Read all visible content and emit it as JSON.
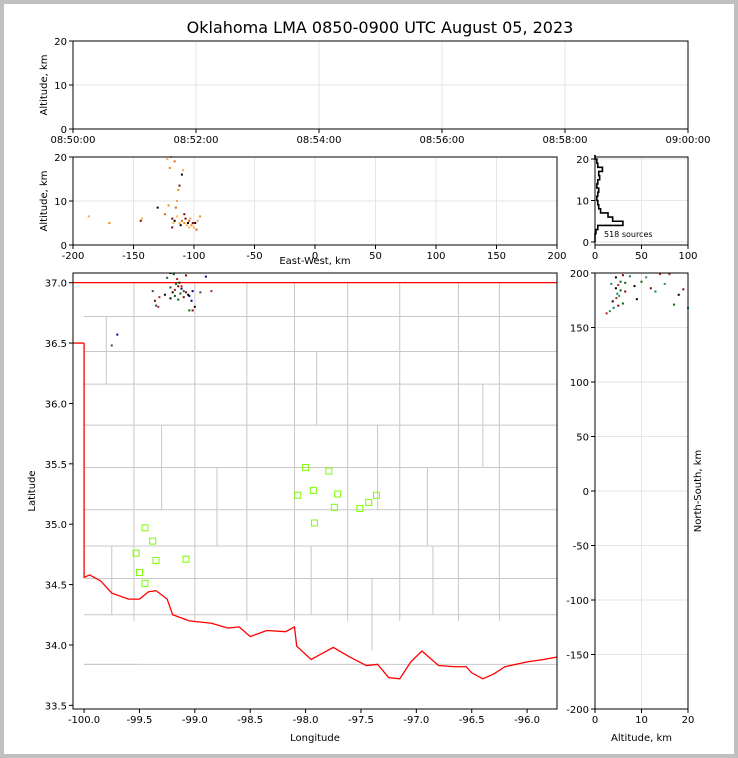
{
  "title": "Oklahoma LMA 0850-0900 UTC August 05, 2023",
  "chart_data": [
    {
      "panel": "time-height",
      "type": "scatter",
      "ylabel": "Altitude, km",
      "x_ticks": [
        "08:50:00",
        "08:52:00",
        "08:54:00",
        "08:56:00",
        "08:58:00",
        "09:00:00"
      ],
      "xlim_minutes": [
        0,
        10
      ],
      "ylim": [
        0,
        20
      ],
      "y_ticks": [
        0,
        10,
        20
      ],
      "grid": true,
      "points": []
    },
    {
      "panel": "east-west-altitude",
      "type": "scatter",
      "xlabel": "East-West, km",
      "ylabel": "Altitude, km",
      "xlim": [
        -200,
        200
      ],
      "ylim": [
        0,
        20
      ],
      "x_ticks": [
        -200,
        -150,
        -100,
        -50,
        0,
        50,
        100,
        150,
        200
      ],
      "y_ticks": [
        0,
        10,
        20
      ],
      "grid": true,
      "points": [
        [
          -187,
          6.5
        ],
        [
          -170,
          5
        ],
        [
          -144,
          5.5
        ],
        [
          -143,
          6
        ],
        [
          -130,
          8.5
        ],
        [
          -124,
          7
        ],
        [
          -122,
          19.5
        ],
        [
          -120,
          17.5
        ],
        [
          -118,
          6
        ],
        [
          -117,
          5
        ],
        [
          -116,
          5.5
        ],
        [
          -115,
          8.5
        ],
        [
          -114,
          10
        ],
        [
          -113,
          12.5
        ],
        [
          -112,
          13.5
        ],
        [
          -112,
          5
        ],
        [
          -111,
          4.5
        ],
        [
          -110,
          5.5
        ],
        [
          -109,
          17
        ],
        [
          -108,
          5
        ],
        [
          -107,
          6
        ],
        [
          -106,
          4.5
        ],
        [
          -105,
          5
        ],
        [
          -104,
          5.5
        ],
        [
          -103,
          6
        ],
        [
          -102,
          4.5
        ],
        [
          -101,
          5
        ],
        [
          -100,
          4
        ],
        [
          -99,
          5
        ],
        [
          -98,
          3.5
        ],
        [
          -97,
          5.5
        ],
        [
          -95,
          6.5
        ],
        [
          -118,
          4
        ],
        [
          -114,
          6.5
        ],
        [
          -110,
          16
        ],
        [
          -116,
          19
        ],
        [
          -119,
          20
        ],
        [
          -121,
          9
        ],
        [
          -108,
          7
        ],
        [
          -104,
          4
        ]
      ]
    },
    {
      "panel": "altitude-histogram",
      "type": "line",
      "xlim": [
        0,
        100
      ],
      "ylim": [
        0,
        20
      ],
      "x_ticks": [
        0,
        50,
        100
      ],
      "y_ticks": [
        0,
        10,
        20
      ],
      "annotation": "518 sources",
      "bins": [
        [
          0.5,
          0
        ],
        [
          1.5,
          0
        ],
        [
          2.5,
          1
        ],
        [
          3.5,
          3
        ],
        [
          4.5,
          30
        ],
        [
          5.5,
          19
        ],
        [
          6.5,
          14
        ],
        [
          7.5,
          6
        ],
        [
          8.5,
          4
        ],
        [
          9.5,
          3
        ],
        [
          10.5,
          2
        ],
        [
          11.5,
          3
        ],
        [
          12.5,
          4
        ],
        [
          13.5,
          2
        ],
        [
          14.5,
          3
        ],
        [
          15.5,
          5
        ],
        [
          16.5,
          4
        ],
        [
          17.5,
          8
        ],
        [
          18.5,
          3
        ],
        [
          19.5,
          2
        ],
        [
          20.5,
          0
        ]
      ]
    },
    {
      "panel": "plan-view",
      "type": "map",
      "xlabel": "Longitude",
      "ylabel": "Latitude",
      "right_label": "North-South, km",
      "xlim": [
        -100.1,
        -95.73
      ],
      "ylim": [
        33.47,
        37.08
      ],
      "x_ticks": [
        -100.0,
        -99.5,
        -99.0,
        -98.5,
        -98.0,
        -97.5,
        -97.0,
        -96.5,
        -96.0
      ],
      "y_ticks": [
        33.5,
        34.0,
        34.5,
        35.0,
        35.5,
        36.0,
        36.5,
        37.0
      ],
      "right_ticks": [
        200,
        150,
        100,
        50,
        0,
        -50,
        -100,
        -150,
        -200
      ],
      "stations": [
        [
          -99.45,
          34.97
        ],
        [
          -99.38,
          34.86
        ],
        [
          -99.53,
          34.76
        ],
        [
          -99.35,
          34.7
        ],
        [
          -99.08,
          34.71
        ],
        [
          -99.5,
          34.6
        ],
        [
          -99.45,
          34.51
        ],
        [
          -98.0,
          35.47
        ],
        [
          -97.79,
          35.44
        ],
        [
          -98.07,
          35.24
        ],
        [
          -97.93,
          35.28
        ],
        [
          -97.71,
          35.25
        ],
        [
          -97.36,
          35.24
        ],
        [
          -97.43,
          35.18
        ],
        [
          -97.74,
          35.14
        ],
        [
          -97.51,
          35.13
        ],
        [
          -97.92,
          35.01
        ]
      ],
      "sources": [
        [
          -99.22,
          37.08
        ],
        [
          -99.19,
          37.07
        ],
        [
          -99.08,
          37.06
        ],
        [
          -98.9,
          37.05
        ],
        [
          -99.25,
          37.04
        ],
        [
          -99.16,
          37.03
        ],
        [
          -99.14,
          37.0
        ],
        [
          -99.22,
          36.96
        ],
        [
          -99.15,
          36.97
        ],
        [
          -99.12,
          36.95
        ],
        [
          -99.1,
          36.93
        ],
        [
          -99.18,
          36.94
        ],
        [
          -99.2,
          36.92
        ],
        [
          -99.13,
          36.91
        ],
        [
          -99.08,
          36.92
        ],
        [
          -99.02,
          36.93
        ],
        [
          -98.95,
          36.92
        ],
        [
          -98.85,
          36.93
        ],
        [
          -99.27,
          36.9
        ],
        [
          -99.18,
          36.89
        ],
        [
          -99.1,
          36.88
        ],
        [
          -99.05,
          36.89
        ],
        [
          -99.38,
          36.93
        ],
        [
          -99.32,
          36.88
        ],
        [
          -99.22,
          36.87
        ],
        [
          -99.15,
          36.86
        ],
        [
          -99.36,
          36.85
        ],
        [
          -99.03,
          36.85
        ],
        [
          -99.35,
          36.81
        ],
        [
          -99.33,
          36.8
        ],
        [
          -99.0,
          36.8
        ],
        [
          -99.05,
          36.77
        ],
        [
          -99.02,
          36.77
        ],
        [
          -99.7,
          36.57
        ],
        [
          -99.75,
          36.48
        ],
        [
          -99.12,
          36.97
        ],
        [
          -99.06,
          36.9
        ],
        [
          -99.17,
          36.99
        ]
      ],
      "alt_sources": [
        [
          4.5,
          196
        ],
        [
          5.5,
          192
        ],
        [
          6.0,
          198
        ],
        [
          7.5,
          197
        ],
        [
          3.5,
          190
        ],
        [
          5.0,
          189
        ],
        [
          4.5,
          186
        ],
        [
          5.5,
          184
        ],
        [
          6.5,
          183
        ],
        [
          4.8,
          181
        ],
        [
          5.2,
          179
        ],
        [
          4.6,
          177
        ],
        [
          3.8,
          174
        ],
        [
          6.0,
          172
        ],
        [
          5.0,
          170
        ],
        [
          4.0,
          168
        ],
        [
          3.2,
          165
        ],
        [
          2.5,
          163
        ],
        [
          8.5,
          188
        ],
        [
          10,
          192
        ],
        [
          12,
          186
        ],
        [
          13,
          183
        ],
        [
          15,
          190
        ],
        [
          16,
          199
        ],
        [
          18,
          180
        ],
        [
          17,
          171
        ],
        [
          19,
          185
        ],
        [
          20,
          168
        ],
        [
          11,
          196
        ],
        [
          14,
          199
        ],
        [
          9,
          176
        ],
        [
          6.5,
          191
        ]
      ],
      "alt_xlabel": "Altitude, km",
      "alt_xlim": [
        0,
        20
      ],
      "alt_ylim": [
        -200,
        200
      ],
      "alt_x_ticks": [
        0,
        10,
        20
      ],
      "alt_y_ticks": [
        200,
        150,
        100,
        50,
        0,
        -50,
        -100,
        -150,
        -200
      ]
    }
  ]
}
